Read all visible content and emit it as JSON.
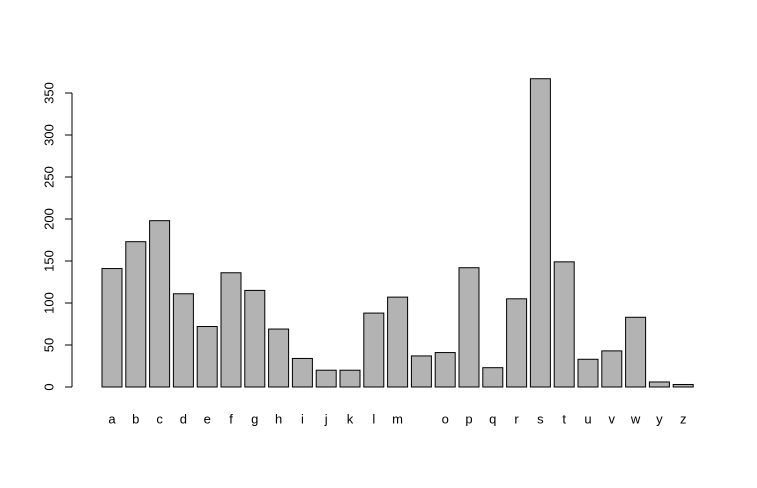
{
  "chart_data": {
    "type": "bar",
    "categories": [
      "a",
      "b",
      "c",
      "d",
      "e",
      "f",
      "g",
      "h",
      "i",
      "j",
      "k",
      "l",
      "m",
      null,
      "o",
      "p",
      "q",
      "r",
      "s",
      "t",
      "u",
      "v",
      "w",
      "y",
      "z"
    ],
    "values": [
      141,
      173,
      198,
      111,
      72,
      136,
      115,
      69,
      34,
      20,
      20,
      88,
      107,
      37,
      41,
      142,
      23,
      105,
      367,
      149,
      33,
      43,
      83,
      6,
      3
    ],
    "color": "#b3b3b3",
    "ylim": [
      0,
      350
    ],
    "yticks": [
      0,
      50,
      100,
      150,
      200,
      250,
      300,
      350
    ],
    "grid": false
  }
}
